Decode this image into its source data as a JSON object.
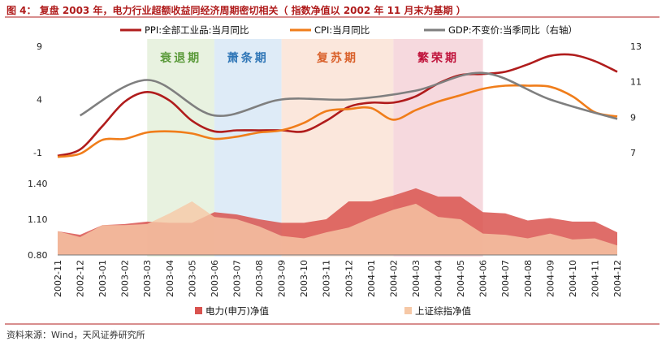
{
  "header": {
    "title": "图 4： 复盘 2003 年，电力行业超额收益同经济周期密切相关（ 指数净值以 2002 年 11 月末为基期 ）"
  },
  "footer": {
    "source": "资料来源：Wind，天风证券研究所"
  },
  "colors": {
    "ppi": "#b01c1c",
    "cpi": "#f07d1a",
    "gdp": "#7f7f7f",
    "power": "#d9534f",
    "sh": "#f6c8a6",
    "rule_red": "#b01c1c"
  },
  "chart_data": [
    {
      "type": "line",
      "x": [
        "2002-11",
        "2002-12",
        "2003-01",
        "2003-02",
        "2003-03",
        "2003-04",
        "2003-05",
        "2003-06",
        "2003-07",
        "2003-08",
        "2003-09",
        "2003-10",
        "2003-11",
        "2003-12",
        "2004-01",
        "2004-02",
        "2004-03",
        "2004-04",
        "2004-05",
        "2004-06",
        "2004-07",
        "2004-08",
        "2004-09",
        "2004-10",
        "2004-11",
        "2004-12"
      ],
      "y_left_ticks": [
        "9",
        "4",
        "-1"
      ],
      "y_left_range": [
        -1,
        9
      ],
      "y_right_ticks": [
        "13",
        "11",
        "9",
        "7"
      ],
      "y_right_range": [
        7,
        13
      ],
      "series": [
        {
          "name": "PPI:全部工业品:当月同比",
          "axis": "left",
          "color_key": "ppi",
          "values": [
            -1.3,
            -0.7,
            1.5,
            3.8,
            4.7,
            3.9,
            2.0,
            1.0,
            1.1,
            1.1,
            1.1,
            1.0,
            2.0,
            3.3,
            3.7,
            3.7,
            4.3,
            5.5,
            6.3,
            6.4,
            6.6,
            7.3,
            8.1,
            8.2,
            7.6,
            6.6
          ]
        },
        {
          "name": "CPI:当月同比",
          "axis": "left",
          "color_key": "cpi",
          "values": [
            -1.4,
            -1.1,
            0.2,
            0.3,
            0.9,
            1.0,
            0.8,
            0.3,
            0.5,
            0.9,
            1.1,
            1.8,
            2.9,
            3.1,
            3.2,
            2.1,
            3.0,
            3.8,
            4.4,
            5.0,
            5.3,
            5.3,
            5.2,
            4.3,
            2.8,
            2.4
          ]
        },
        {
          "name": "GDP:不变价:当季同比（右轴）",
          "axis": "right",
          "color_key": "gdp",
          "points": [
            {
              "x": "2002-12",
              "y": 9.1
            },
            {
              "x": "2003-03",
              "y": 11.1
            },
            {
              "x": "2003-06",
              "y": 9.1
            },
            {
              "x": "2003-09",
              "y": 10.0
            },
            {
              "x": "2003-12",
              "y": 10.0
            },
            {
              "x": "2004-03",
              "y": 10.5
            },
            {
              "x": "2004-06",
              "y": 11.5
            },
            {
              "x": "2004-09",
              "y": 10.0
            },
            {
              "x": "2004-12",
              "y": 8.9
            }
          ]
        }
      ]
    },
    {
      "type": "area",
      "x": [
        "2002-11",
        "2002-12",
        "2003-01",
        "2003-02",
        "2003-03",
        "2003-04",
        "2003-05",
        "2003-06",
        "2003-07",
        "2003-08",
        "2003-09",
        "2003-10",
        "2003-11",
        "2003-12",
        "2004-01",
        "2004-02",
        "2004-03",
        "2004-04",
        "2004-05",
        "2004-06",
        "2004-07",
        "2004-08",
        "2004-09",
        "2004-10",
        "2004-11",
        "2004-12"
      ],
      "y_ticks": [
        "1.40",
        "1.10",
        "0.80"
      ],
      "ylim": [
        0.8,
        1.4
      ],
      "series": [
        {
          "name": "电力(申万)净值",
          "color_key": "power",
          "values": [
            1.0,
            0.97,
            1.05,
            1.06,
            1.08,
            1.07,
            1.07,
            1.16,
            1.14,
            1.1,
            1.07,
            1.07,
            1.1,
            1.25,
            1.25,
            1.3,
            1.36,
            1.29,
            1.29,
            1.16,
            1.15,
            1.09,
            1.11,
            1.08,
            1.08,
            0.99
          ]
        },
        {
          "name": "上证综指净值",
          "color_key": "sh",
          "values": [
            1.0,
            0.95,
            1.05,
            1.05,
            1.06,
            1.15,
            1.25,
            1.12,
            1.1,
            1.04,
            0.96,
            0.94,
            0.99,
            1.03,
            1.11,
            1.18,
            1.23,
            1.12,
            1.1,
            0.98,
            0.97,
            0.94,
            0.98,
            0.93,
            0.94,
            0.88
          ]
        }
      ]
    }
  ],
  "phases": [
    {
      "label": "衰退期",
      "from": "2003-03",
      "to": "2003-06",
      "fill": "#e8f2e0",
      "text_color": "#5a9a3a"
    },
    {
      "label": "萧条期",
      "from": "2003-06",
      "to": "2003-09",
      "fill": "#deebf7",
      "text_color": "#2e75b6"
    },
    {
      "label": "复苏期",
      "from": "2003-09",
      "to": "2004-02",
      "fill": "#fbe7dc",
      "text_color": "#d9602a"
    },
    {
      "label": "繁荣期",
      "from": "2004-02",
      "to": "2004-06",
      "fill": "#f6d9de",
      "text_color": "#c0143c"
    }
  ]
}
